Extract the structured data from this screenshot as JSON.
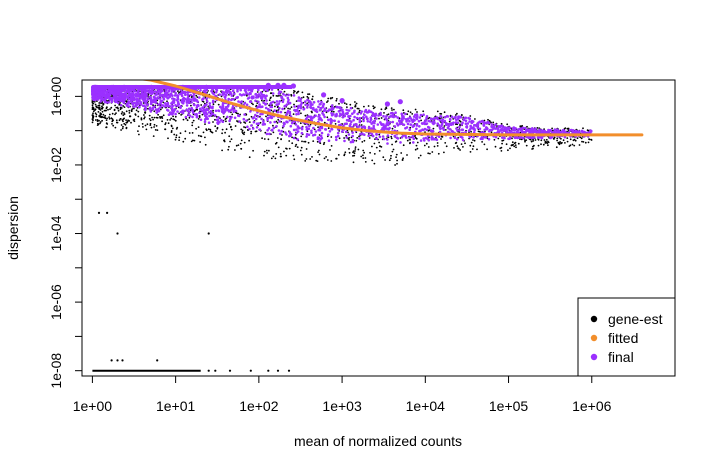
{
  "chart_data": {
    "type": "scatter",
    "title": "",
    "xlabel": "mean of normalized counts",
    "ylabel": "dispersion",
    "x_scale": "log10",
    "y_scale": "log10",
    "xlim": [
      0.75,
      10000000
    ],
    "ylim": [
      7e-09,
      3
    ],
    "x_ticks": [
      {
        "value": 1,
        "label": "1e+00"
      },
      {
        "value": 10,
        "label": "1e+01"
      },
      {
        "value": 100,
        "label": "1e+02"
      },
      {
        "value": 1000,
        "label": "1e+03"
      },
      {
        "value": 10000,
        "label": "1e+04"
      },
      {
        "value": 100000,
        "label": "1e+05"
      },
      {
        "value": 1000000,
        "label": "1e+06"
      }
    ],
    "y_ticks": [
      {
        "value": 1e-08,
        "label": "1e-08"
      },
      {
        "value": 1e-06,
        "label": "1e-06"
      },
      {
        "value": 0.0001,
        "label": "1e-04"
      },
      {
        "value": 0.01,
        "label": "1e-02"
      },
      {
        "value": 1,
        "label": "1e+00"
      }
    ],
    "grid": false,
    "legend": {
      "position": "bottom-right",
      "entries": [
        {
          "name": "gene-est",
          "color": "#000000"
        },
        {
          "name": "fitted",
          "color": "#f28e2b"
        },
        {
          "name": "final",
          "color": "#9b30ff"
        }
      ]
    },
    "series": [
      {
        "name": "gene-est",
        "color": "#000000",
        "band": {
          "x": [
            1,
            3,
            10,
            30,
            100,
            300,
            1000,
            3000,
            10000,
            30000,
            100000,
            300000,
            1000000
          ],
          "upper": [
            2,
            2,
            2,
            2,
            2,
            1.5,
            0.8,
            0.5,
            0.4,
            0.3,
            0.15,
            0.12,
            0.12
          ],
          "lower": [
            0.15,
            0.08,
            0.05,
            0.02,
            0.015,
            0.012,
            0.012,
            0.008,
            0.015,
            0.02,
            0.025,
            0.03,
            0.04
          ]
        },
        "floor_segment": {
          "x_from": 1,
          "x_to": 20,
          "y": 1e-08
        },
        "outliers": [
          {
            "x": 1.2,
            "y": 0.0004
          },
          {
            "x": 1.5,
            "y": 0.0004
          },
          {
            "x": 2,
            "y": 0.0001
          },
          {
            "x": 25,
            "y": 0.0001
          },
          {
            "x": 1.7,
            "y": 2e-08
          },
          {
            "x": 2,
            "y": 2e-08
          },
          {
            "x": 2.3,
            "y": 2e-08
          },
          {
            "x": 6,
            "y": 2e-08
          },
          {
            "x": 25,
            "y": 1e-08
          },
          {
            "x": 30,
            "y": 1e-08
          },
          {
            "x": 45,
            "y": 1e-08
          },
          {
            "x": 80,
            "y": 1e-08
          },
          {
            "x": 130,
            "y": 1e-08
          },
          {
            "x": 170,
            "y": 1e-08
          },
          {
            "x": 230,
            "y": 1e-08
          }
        ]
      },
      {
        "name": "fitted",
        "color": "#f28e2b",
        "x": [
          2.8,
          5,
          10,
          20,
          50,
          100,
          200,
          500,
          1000,
          2000,
          5000,
          10000,
          100000,
          1000000,
          4000000
        ],
        "y": [
          5,
          3,
          2,
          1.2,
          0.6,
          0.38,
          0.25,
          0.16,
          0.12,
          0.1,
          0.085,
          0.08,
          0.075,
          0.075,
          0.075
        ]
      },
      {
        "name": "final",
        "color": "#9b30ff",
        "band": {
          "x": [
            1,
            3,
            10,
            30,
            100,
            300,
            1000,
            3000,
            10000,
            30000,
            100000,
            300000,
            1000000
          ],
          "upper": [
            2,
            2,
            2,
            2,
            2,
            1.0,
            0.5,
            0.35,
            0.3,
            0.25,
            0.13,
            0.11,
            0.1
          ],
          "lower": [
            0.8,
            0.45,
            0.25,
            0.15,
            0.08,
            0.05,
            0.045,
            0.04,
            0.045,
            0.05,
            0.055,
            0.06,
            0.065
          ]
        },
        "outliers": [
          {
            "x": 130,
            "y": 2.1
          },
          {
            "x": 170,
            "y": 2.1
          },
          {
            "x": 200,
            "y": 2.1
          },
          {
            "x": 260,
            "y": 2.0
          },
          {
            "x": 600,
            "y": 1.1
          },
          {
            "x": 1000,
            "y": 0.75
          },
          {
            "x": 3500,
            "y": 0.6
          },
          {
            "x": 5000,
            "y": 0.7
          }
        ]
      }
    ]
  }
}
